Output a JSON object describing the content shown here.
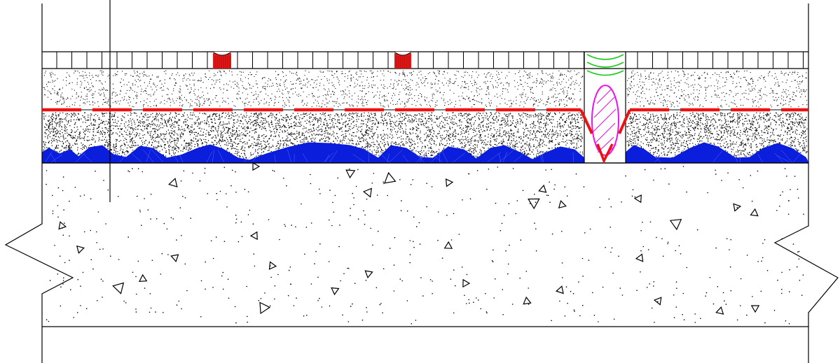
{
  "colors": {
    "line": "#000000",
    "membrane": "#ee1111",
    "sealant_joint": "#e31a1a",
    "insulation_wave": "#0a1edc",
    "backer_rod": "#ee11ee",
    "compressible_filler": "#22cc22",
    "fill": "#ffffff"
  },
  "layers": [
    {
      "id": "tile-layer",
      "name": "paving-tiles"
    },
    {
      "id": "upper-screed",
      "name": "fine-screed"
    },
    {
      "id": "waterproof-membrane",
      "name": "dashed-membrane"
    },
    {
      "id": "lower-screed",
      "name": "dense-screed"
    },
    {
      "id": "insulation",
      "name": "wave-insulation"
    },
    {
      "id": "concrete-slab",
      "name": "concrete-slab-with-aggregate"
    }
  ],
  "details": {
    "movement_joint": "expansion-joint-with-backer-rod-and-filler",
    "break_line": "zigzag-break-lines-both-sides"
  }
}
